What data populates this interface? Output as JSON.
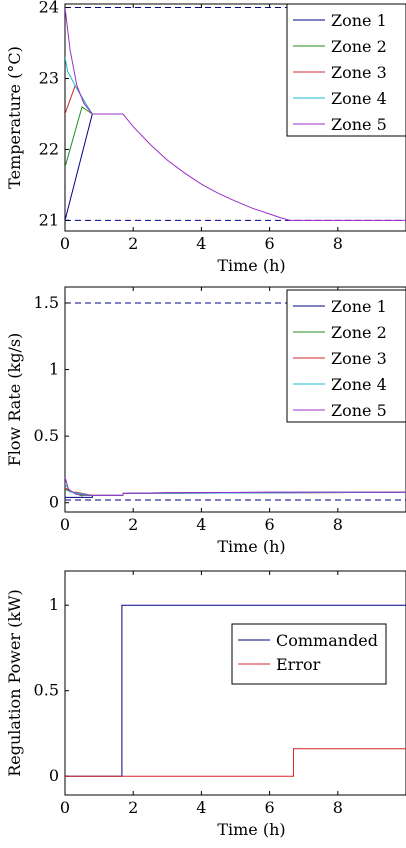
{
  "chart_data": [
    {
      "type": "line",
      "xlabel": "Time (h)",
      "ylabel": "Temperature (°C)",
      "xlim": [
        0,
        10
      ],
      "ylim": [
        20.85,
        24.05
      ],
      "xticks": [
        0,
        2,
        4,
        6,
        8
      ],
      "yticks": [
        21,
        22,
        23,
        24
      ],
      "legend_position": "top-right",
      "reference_lines": [
        {
          "y": 24,
          "color": "#00008b",
          "style": "dashed"
        },
        {
          "y": 21,
          "color": "#00008b",
          "style": "dashed"
        }
      ],
      "series": [
        {
          "name": "Zone 1",
          "color": "#00008b",
          "x": [
            0,
            0.8,
            1.7
          ],
          "y": [
            21.0,
            22.5,
            22.5
          ]
        },
        {
          "name": "Zone 2",
          "color": "#228b22",
          "x": [
            0,
            0.5,
            0.8,
            1.7
          ],
          "y": [
            21.75,
            22.6,
            22.5,
            22.5
          ]
        },
        {
          "name": "Zone 3",
          "color": "#d62728",
          "x": [
            0,
            0.3,
            0.6,
            0.8,
            1.7
          ],
          "y": [
            22.5,
            22.9,
            22.65,
            22.5,
            22.5
          ]
        },
        {
          "name": "Zone 4",
          "color": "#17becf",
          "x": [
            0,
            0.08,
            0.3,
            0.6,
            0.8,
            1.7
          ],
          "y": [
            23.3,
            23.1,
            22.9,
            22.65,
            22.5,
            22.5
          ]
        },
        {
          "name": "Zone 5",
          "color": "#9b30c8",
          "x": [
            0,
            0.15,
            0.35,
            0.55,
            0.8,
            1.7,
            2.0,
            2.5,
            3.0,
            3.5,
            4.0,
            4.5,
            5.0,
            5.5,
            6.0,
            6.3,
            6.6,
            7.0,
            8.0,
            9.0,
            10.0
          ],
          "y": [
            24.0,
            23.4,
            22.9,
            22.65,
            22.5,
            22.5,
            22.32,
            22.07,
            21.85,
            21.67,
            21.51,
            21.38,
            21.27,
            21.17,
            21.09,
            21.04,
            21.0,
            21.0,
            21.0,
            21.0,
            21.0
          ]
        }
      ]
    },
    {
      "type": "line",
      "xlabel": "Time (h)",
      "ylabel": "Flow Rate (kg/s)",
      "xlim": [
        0,
        10
      ],
      "ylim": [
        -0.07,
        1.62
      ],
      "xticks": [
        0,
        2,
        4,
        6,
        8
      ],
      "yticks": [
        0,
        0.5,
        1,
        1.5
      ],
      "legend_position": "top-right",
      "reference_lines": [
        {
          "y": 1.5,
          "color": "#00008b",
          "style": "dashed"
        },
        {
          "y": 0.02,
          "color": "#00008b",
          "style": "dashed"
        }
      ],
      "series": [
        {
          "name": "Zone 1",
          "color": "#00008b",
          "x": [
            0,
            0.8,
            0.8,
            1.7,
            1.7,
            3,
            6,
            10
          ],
          "y": [
            0.04,
            0.04,
            0.055,
            0.055,
            0.07,
            0.075,
            0.078,
            0.078
          ]
        },
        {
          "name": "Zone 2",
          "color": "#228b22",
          "x": [
            0,
            0.5,
            0.5,
            0.8,
            0.8,
            1.7,
            1.7,
            10
          ],
          "y": [
            0.1,
            0.05,
            0.055,
            0.055,
            0.055,
            0.055,
            0.07,
            0.078
          ]
        },
        {
          "name": "Zone 3",
          "color": "#d62728",
          "x": [
            0,
            0.3,
            0.3,
            0.8,
            0.8,
            1.7,
            1.7,
            10
          ],
          "y": [
            0.11,
            0.07,
            0.08,
            0.055,
            0.055,
            0.055,
            0.07,
            0.078
          ]
        },
        {
          "name": "Zone 4",
          "color": "#17becf",
          "x": [
            0,
            0.15,
            0.15,
            0.8,
            0.8,
            1.7,
            1.7,
            10
          ],
          "y": [
            0.14,
            0.09,
            0.08,
            0.055,
            0.055,
            0.055,
            0.07,
            0.078
          ]
        },
        {
          "name": "Zone 5",
          "color": "#9b30c8",
          "x": [
            0,
            0.05,
            0.1,
            0.3,
            0.3,
            0.5,
            0.5,
            0.8,
            0.8,
            1.7,
            1.7,
            3,
            6,
            10
          ],
          "y": [
            0.19,
            0.15,
            0.1,
            0.07,
            0.065,
            0.06,
            0.06,
            0.055,
            0.055,
            0.055,
            0.07,
            0.075,
            0.078,
            0.078
          ]
        }
      ]
    },
    {
      "type": "line",
      "xlabel": "Time (h)",
      "ylabel": "Regulation Power (kW)",
      "xlim": [
        0,
        10
      ],
      "ylim": [
        -0.11,
        1.2
      ],
      "xticks": [
        0,
        2,
        4,
        6,
        8
      ],
      "yticks": [
        0,
        0.5,
        1
      ],
      "legend_position": "center-right",
      "reference_lines": [],
      "series": [
        {
          "name": "Commanded",
          "color": "#00008b",
          "x": [
            0,
            1.67,
            1.67,
            10
          ],
          "y": [
            0,
            0,
            1,
            1
          ]
        },
        {
          "name": "Error",
          "color": "#d62728",
          "x": [
            0,
            6.7,
            6.7,
            10
          ],
          "y": [
            0,
            0,
            0.16,
            0.16
          ]
        }
      ]
    }
  ]
}
